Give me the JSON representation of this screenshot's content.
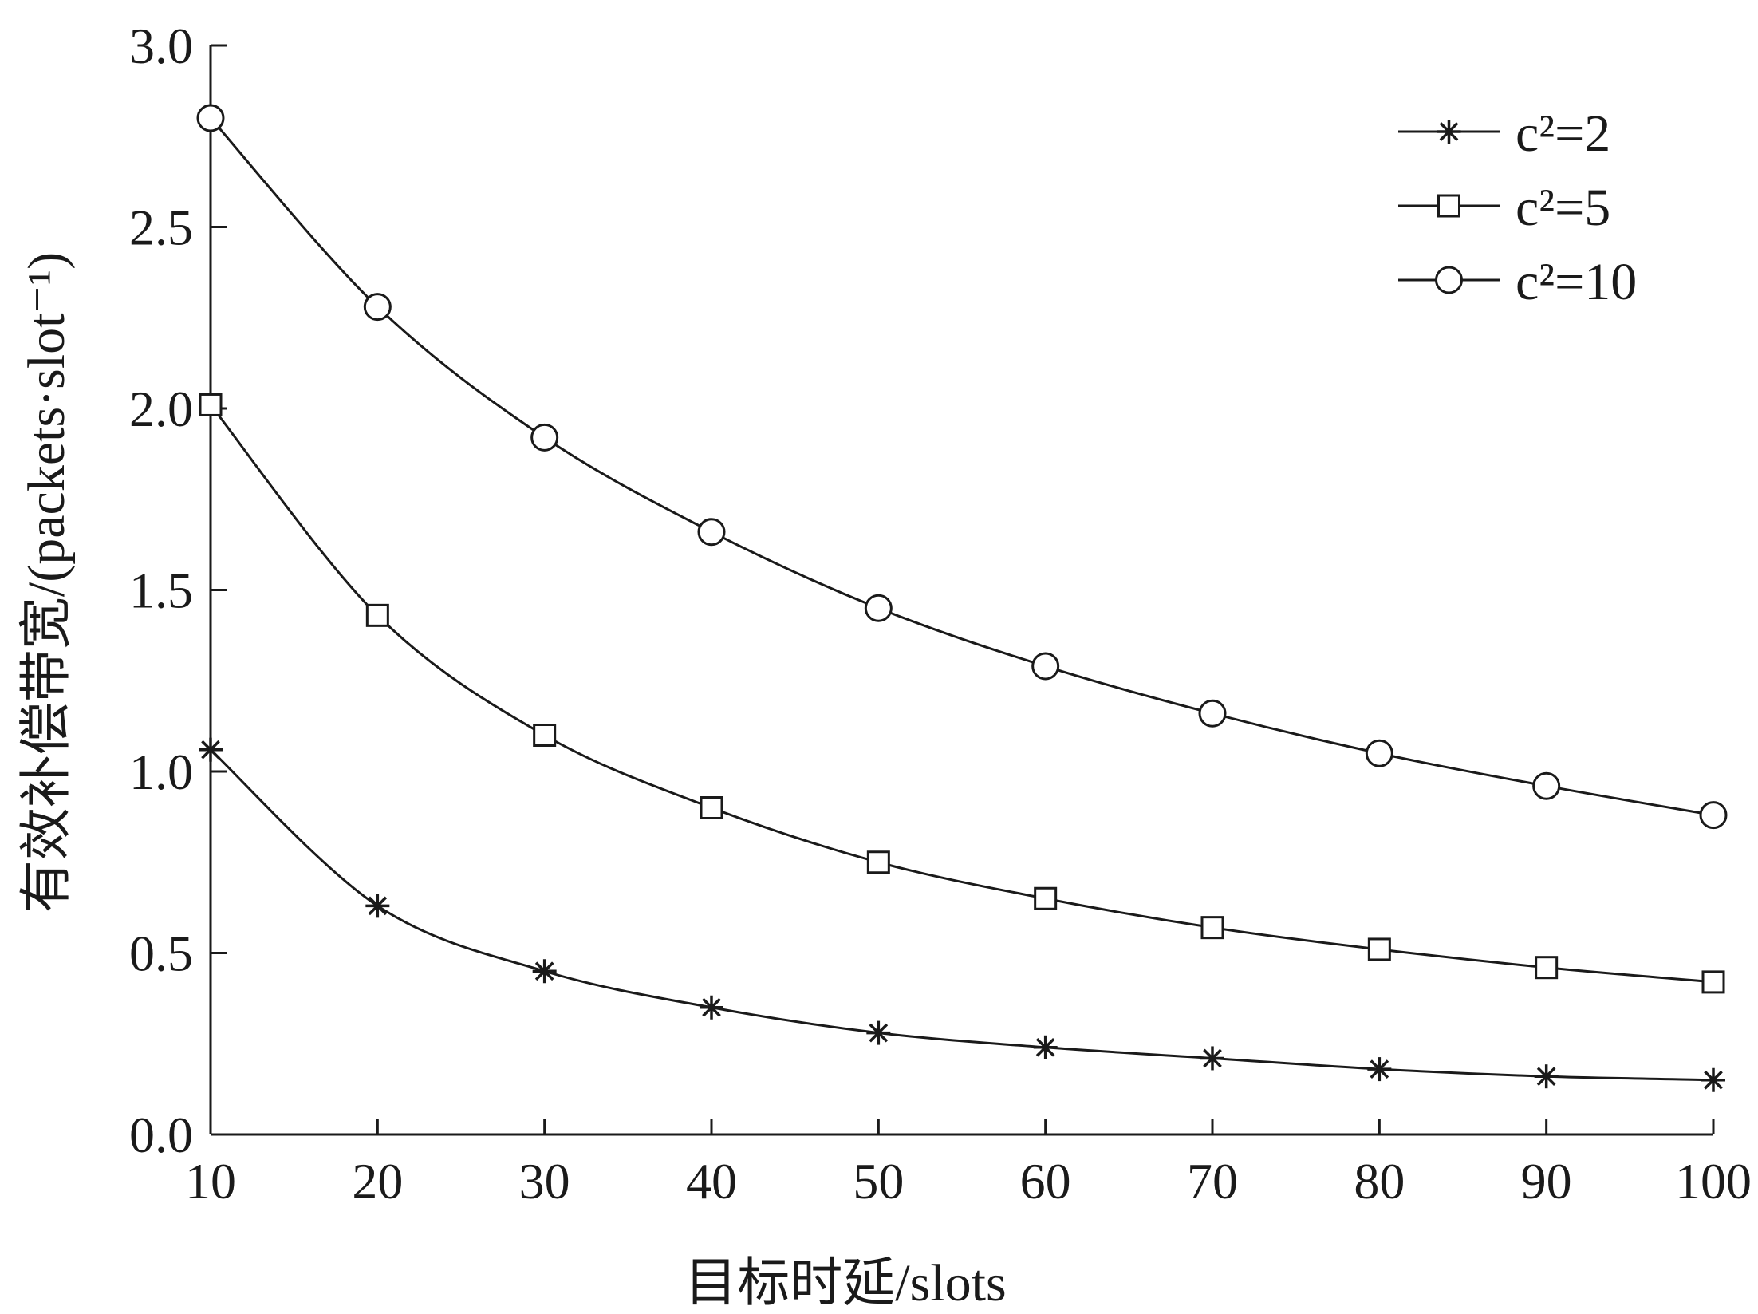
{
  "chart_data": {
    "type": "line",
    "xlabel": "目标时延/slots",
    "ylabel": "有效补偿带宽/(packets·slot⁻¹)",
    "x": [
      10,
      20,
      30,
      40,
      50,
      60,
      70,
      80,
      90,
      100
    ],
    "xlim": [
      10,
      100
    ],
    "ylim": [
      0.0,
      3.0
    ],
    "xticks": [
      "10",
      "20",
      "30",
      "40",
      "50",
      "60",
      "70",
      "80",
      "90",
      "100"
    ],
    "yticks": [
      "0.0",
      "0.5",
      "1.0",
      "1.5",
      "2.0",
      "2.5",
      "3.0"
    ],
    "grid": false,
    "legend_position": "top-right",
    "series": [
      {
        "name": "c²=2",
        "marker": "asterisk",
        "values": [
          1.06,
          0.63,
          0.45,
          0.35,
          0.28,
          0.24,
          0.21,
          0.18,
          0.16,
          0.15
        ]
      },
      {
        "name": "c²=5",
        "marker": "square",
        "values": [
          2.01,
          1.43,
          1.1,
          0.9,
          0.75,
          0.65,
          0.57,
          0.51,
          0.46,
          0.42
        ]
      },
      {
        "name": "c²=10",
        "marker": "circle",
        "values": [
          2.8,
          2.28,
          1.92,
          1.66,
          1.45,
          1.29,
          1.16,
          1.05,
          0.96,
          0.88
        ]
      }
    ],
    "colors": {
      "line": "#1a1a1a",
      "background": "#ffffff"
    }
  }
}
